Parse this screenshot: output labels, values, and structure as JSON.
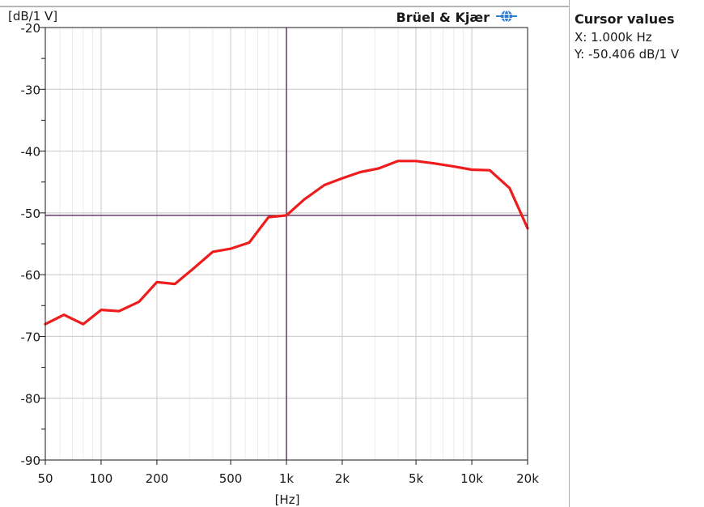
{
  "brand": {
    "name": "Brüel & Kjær"
  },
  "cursor_panel": {
    "title": "Cursor values",
    "x_text": "X: 1.000k Hz",
    "y_text": "Y: -50.406 dB/1 V"
  },
  "colors": {
    "series": "#ee1c1c",
    "cursor": "#5a2a60",
    "grid": "#c8c8c8",
    "axis": "#1a1a1a",
    "brand_icon": "#2e7fd0"
  },
  "icons": {
    "brand_logo": "globe-icon"
  },
  "chart_data": {
    "type": "line",
    "xlabel": "[Hz]",
    "ylabel": "[dB/1 V]",
    "xscale": "log",
    "xlim": [
      50,
      20000
    ],
    "ylim": [
      -90,
      -20
    ],
    "grid": true,
    "xticks": [
      {
        "value": 50,
        "label": "50"
      },
      {
        "value": 100,
        "label": "100"
      },
      {
        "value": 200,
        "label": "200"
      },
      {
        "value": 500,
        "label": "500"
      },
      {
        "value": 1000,
        "label": "1k"
      },
      {
        "value": 2000,
        "label": "2k"
      },
      {
        "value": 5000,
        "label": "5k"
      },
      {
        "value": 10000,
        "label": "10k"
      },
      {
        "value": 20000,
        "label": "20k"
      }
    ],
    "yticks": [
      {
        "value": -20,
        "label": "-20"
      },
      {
        "value": -30,
        "label": "-30"
      },
      {
        "value": -40,
        "label": "-40"
      },
      {
        "value": -50,
        "label": "-50"
      },
      {
        "value": -60,
        "label": "-60"
      },
      {
        "value": -70,
        "label": "-70"
      },
      {
        "value": -80,
        "label": "-80"
      },
      {
        "value": -90,
        "label": "-90"
      }
    ],
    "series": [
      {
        "color": "#ee1c1c",
        "x": [
          50,
          63,
          80,
          100,
          125,
          160,
          200,
          250,
          315,
          400,
          500,
          630,
          800,
          1000,
          1250,
          1600,
          2000,
          2500,
          3150,
          4000,
          5000,
          6300,
          8000,
          10000,
          12500,
          16000,
          20000
        ],
        "y": [
          -68.0,
          -66.5,
          -68.0,
          -65.7,
          -65.9,
          -64.4,
          -61.2,
          -61.5,
          -59.0,
          -56.3,
          -55.8,
          -54.8,
          -50.7,
          -50.4,
          -47.8,
          -45.5,
          -44.4,
          -43.4,
          -42.8,
          -41.6,
          -41.6,
          -42.0,
          -42.5,
          -43.0,
          -43.1,
          -46.0,
          -52.5
        ]
      }
    ],
    "cursor": {
      "x": 1000,
      "y": -50.406
    }
  }
}
